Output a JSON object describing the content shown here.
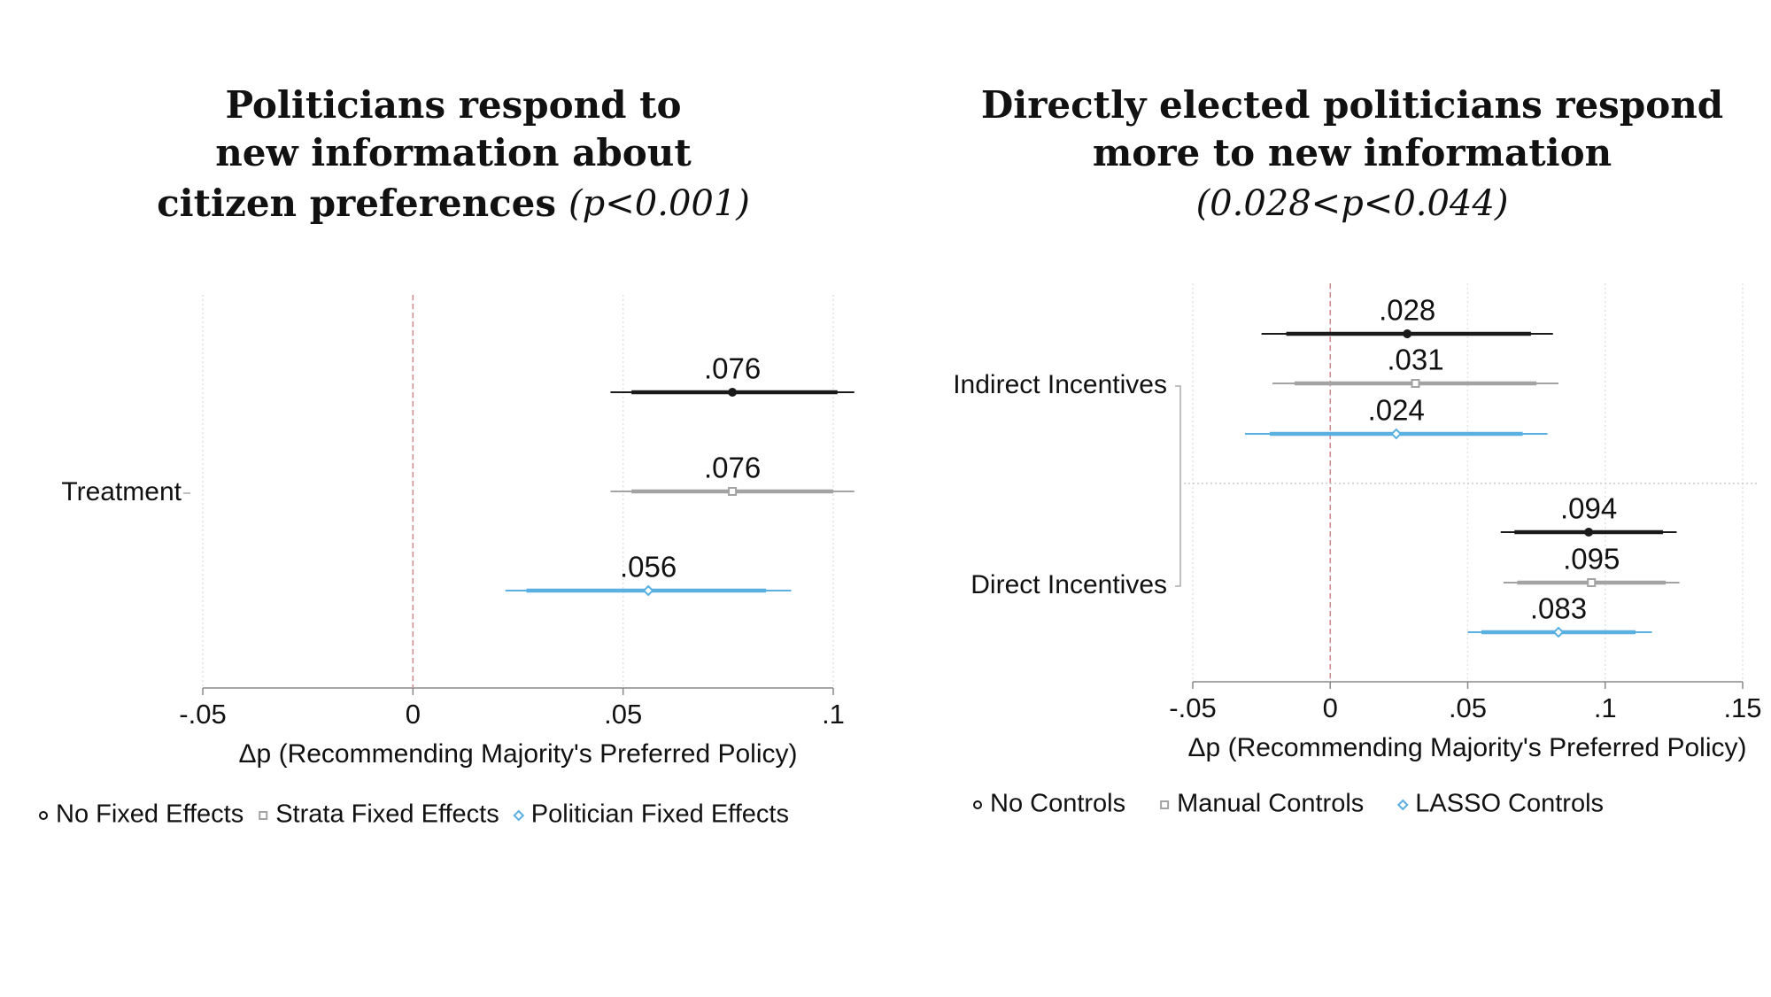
{
  "chart_data": [
    {
      "type": "coefplot",
      "title": [
        "Politicians respond to",
        "new information about",
        "citizen preferences"
      ],
      "title_note": "(p<0.001)",
      "x_label": "Δp (Recommending Majority's Preferred Policy)",
      "categories": [
        "Treatment"
      ],
      "xlim": [
        -0.05,
        0.1
      ],
      "xticks": [
        {
          "value": -0.05,
          "label": "-.05"
        },
        0,
        {
          "value": 0.05,
          "label": ".05"
        },
        {
          "value": 0.1,
          "label": ".1"
        }
      ],
      "grid": true,
      "refline": 0,
      "series": [
        {
          "name": "No Fixed Effects",
          "color": "#1a1a1a",
          "marker": "circle",
          "values": [
            0.076
          ],
          "value_labels": [
            ".076"
          ],
          "ci95_low": [
            0.047
          ],
          "ci95_high": [
            0.105
          ],
          "ci90_low": [
            0.052
          ],
          "ci90_high": [
            0.101
          ]
        },
        {
          "name": "Strata Fixed Effects",
          "color": "#a3a3a3",
          "marker": "square",
          "values": [
            0.076
          ],
          "value_labels": [
            ".076"
          ],
          "ci95_low": [
            0.047
          ],
          "ci95_high": [
            0.105
          ],
          "ci90_low": [
            0.052
          ],
          "ci90_high": [
            0.1
          ]
        },
        {
          "name": "Politician Fixed Effects",
          "color": "#5ab0e0",
          "marker": "diamond",
          "values": [
            0.056
          ],
          "value_labels": [
            ".056"
          ],
          "ci95_low": [
            0.022
          ],
          "ci95_high": [
            0.09
          ],
          "ci90_low": [
            0.027
          ],
          "ci90_high": [
            0.084
          ]
        }
      ]
    },
    {
      "type": "coefplot",
      "title": [
        "Directly elected politicians respond",
        "more to new information"
      ],
      "title_note": "(0.028<p<0.044)",
      "x_label": "Δp (Recommending Majority's Preferred Policy)",
      "categories": [
        "Indirect Incentives",
        "Direct Incentives"
      ],
      "xlim": [
        -0.05,
        0.15
      ],
      "xticks": [
        {
          "value": -0.05,
          "label": "-.05"
        },
        0,
        {
          "value": 0.05,
          "label": ".05"
        },
        {
          "value": 0.1,
          "label": ".1"
        },
        {
          "value": 0.15,
          "label": ".15"
        }
      ],
      "grid": true,
      "refline": 0,
      "series": [
        {
          "name": "No Controls",
          "color": "#1a1a1a",
          "marker": "circle",
          "values": [
            0.028,
            0.094
          ],
          "value_labels": [
            ".028",
            ".094"
          ],
          "ci95_low": [
            -0.025,
            0.062
          ],
          "ci95_high": [
            0.081,
            0.126
          ],
          "ci90_low": [
            -0.016,
            0.067
          ],
          "ci90_high": [
            0.073,
            0.121
          ]
        },
        {
          "name": "Manual Controls",
          "color": "#a3a3a3",
          "marker": "square",
          "values": [
            0.031,
            0.095
          ],
          "value_labels": [
            ".031",
            ".095"
          ],
          "ci95_low": [
            -0.021,
            0.063
          ],
          "ci95_high": [
            0.083,
            0.127
          ],
          "ci90_low": [
            -0.013,
            0.068
          ],
          "ci90_high": [
            0.075,
            0.122
          ]
        },
        {
          "name": "LASSO Controls",
          "color": "#5ab0e0",
          "marker": "diamond",
          "values": [
            0.024,
            0.083
          ],
          "value_labels": [
            ".024",
            ".083"
          ],
          "ci95_low": [
            -0.031,
            0.05
          ],
          "ci95_high": [
            0.079,
            0.117
          ],
          "ci90_low": [
            -0.022,
            0.055
          ],
          "ci90_high": [
            0.07,
            0.111
          ]
        }
      ]
    }
  ]
}
